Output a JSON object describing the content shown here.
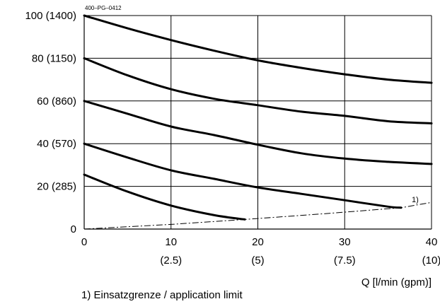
{
  "chart_data": {
    "type": "line",
    "code": "400–PG–0412",
    "xlabel": "Q [l/min (gpm)]",
    "xlim": [
      0,
      40
    ],
    "ylim": [
      0,
      100
    ],
    "grid": true,
    "x_ticks": [
      {
        "value": 0,
        "label": "0",
        "sub": ""
      },
      {
        "value": 10,
        "label": "10",
        "sub": "(2.5)"
      },
      {
        "value": 20,
        "label": "20",
        "sub": "(5)"
      },
      {
        "value": 30,
        "label": "30",
        "sub": "(7.5)"
      },
      {
        "value": 40,
        "label": "40",
        "sub": "(10)"
      }
    ],
    "y_ticks": [
      {
        "value": 0,
        "label": "0"
      },
      {
        "value": 20,
        "label": "20 (285)"
      },
      {
        "value": 40,
        "label": "40 (570)"
      },
      {
        "value": 60,
        "label": "60 (860)"
      },
      {
        "value": 80,
        "label": "80 (1150)"
      },
      {
        "value": 100,
        "label": "100 (1400)"
      }
    ],
    "series": [
      {
        "x": [
          0,
          5,
          10,
          15,
          20,
          25,
          30,
          35,
          40
        ],
        "y": [
          100,
          94,
          88.5,
          83.5,
          79,
          75.5,
          72.5,
          70,
          68.5
        ]
      },
      {
        "x": [
          0,
          5,
          10,
          15,
          20,
          25,
          30,
          35,
          40
        ],
        "y": [
          80,
          72,
          65.5,
          61,
          58,
          55,
          53,
          50.5,
          49.5
        ]
      },
      {
        "x": [
          0,
          5,
          10,
          15,
          20,
          25,
          30,
          35,
          40
        ],
        "y": [
          60,
          54,
          48,
          44,
          39.5,
          35.5,
          33,
          31.5,
          30.5
        ]
      },
      {
        "x": [
          0,
          5,
          10,
          15,
          20,
          25,
          30,
          35,
          36.5
        ],
        "y": [
          40,
          33.5,
          27.5,
          23.5,
          19.5,
          16.5,
          13.5,
          10.5,
          10
        ]
      },
      {
        "x": [
          0,
          5,
          10,
          15,
          18.5
        ],
        "y": [
          25.5,
          17.5,
          11,
          6.5,
          4.5
        ]
      }
    ],
    "limit_line": {
      "x": [
        0,
        10,
        18.5,
        28,
        36.5,
        40
      ],
      "y": [
        0,
        2.2,
        4.5,
        7.3,
        10,
        12.5
      ]
    },
    "annotations": {
      "limit_marker": "1)",
      "footnote": "1) Einsatzgrenze / application limit"
    }
  }
}
